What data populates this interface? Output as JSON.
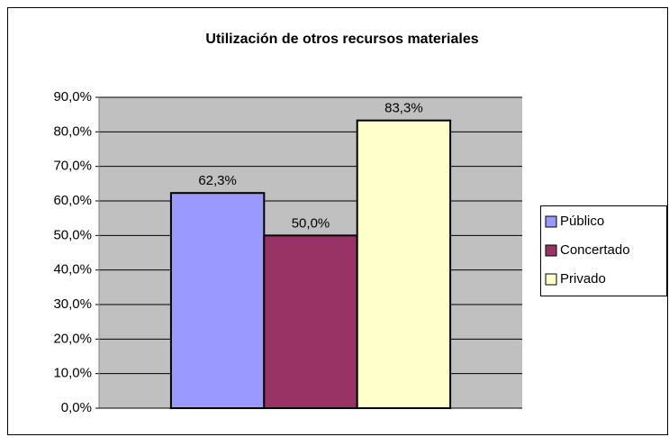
{
  "chart_data": {
    "type": "bar",
    "title": "Utilización de otros recursos materiales",
    "categories": [
      null
    ],
    "series": [
      {
        "name": "Público",
        "color": "#9999ff",
        "values": [
          62.3
        ],
        "value_labels": [
          "62,3%"
        ]
      },
      {
        "name": "Concertado",
        "color": "#993366",
        "values": [
          50.0
        ],
        "value_labels": [
          "50,0%"
        ]
      },
      {
        "name": "Privado",
        "color": "#ffffcc",
        "values": [
          83.3
        ],
        "value_labels": [
          "83,3%"
        ]
      }
    ],
    "ylim": [
      0,
      90
    ],
    "yticks": [
      {
        "value": 0,
        "label": "0,0%"
      },
      {
        "value": 10,
        "label": "10,0%"
      },
      {
        "value": 20,
        "label": "20,0%"
      },
      {
        "value": 30,
        "label": "30,0%"
      },
      {
        "value": 40,
        "label": "40,0%"
      },
      {
        "value": 50,
        "label": "50,0%"
      },
      {
        "value": 60,
        "label": "60,0%"
      },
      {
        "value": 70,
        "label": "70,0%"
      },
      {
        "value": 80,
        "label": "80,0%"
      },
      {
        "value": 90,
        "label": "90,0%"
      }
    ],
    "grid": true,
    "legend": "right",
    "plot_background": "#c0c0c0"
  }
}
